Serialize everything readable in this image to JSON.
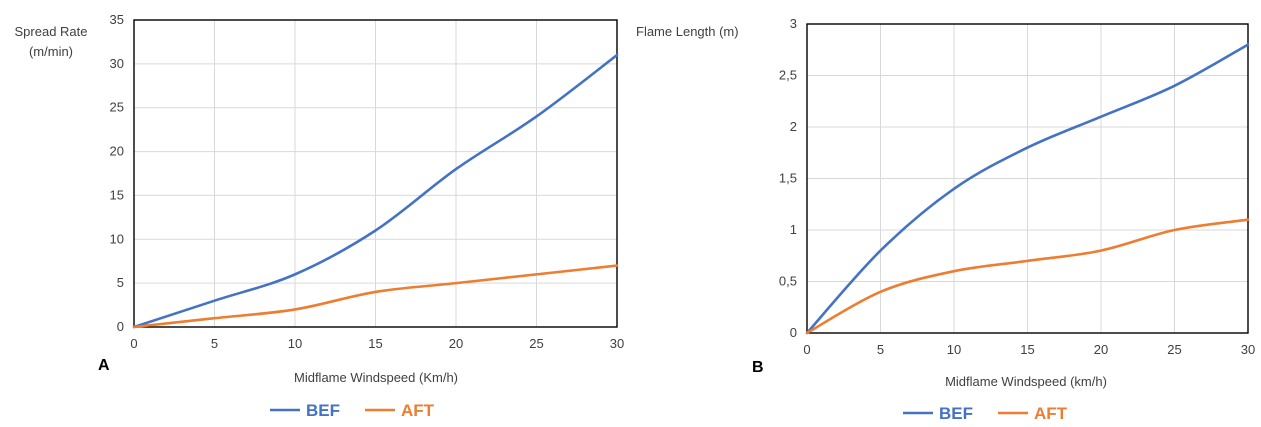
{
  "chart_data": [
    {
      "type": "line",
      "panel_label": "A",
      "ylabel_lines": [
        "Spread Rate",
        "(m/min)"
      ],
      "xlabel": "Midflame Windspeed (Km/h)",
      "x": [
        0,
        5,
        10,
        15,
        20,
        25,
        30
      ],
      "xticks": [
        "0",
        "5",
        "10",
        "15",
        "20",
        "25",
        "30"
      ],
      "yticks": [
        "0",
        "5",
        "10",
        "15",
        "20",
        "25",
        "30",
        "35"
      ],
      "xlim": [
        0,
        30
      ],
      "ylim": [
        0,
        35
      ],
      "grid": true,
      "series": [
        {
          "name": "BEF",
          "color": "#4472C4",
          "values": [
            0,
            3,
            6,
            11,
            18,
            24,
            31
          ]
        },
        {
          "name": "AFT",
          "color": "#ED7D31",
          "values": [
            0,
            1,
            2,
            4,
            5,
            6,
            7
          ]
        }
      ],
      "legend": [
        "BEF",
        "AFT"
      ]
    },
    {
      "type": "line",
      "panel_label": "B",
      "ylabel_lines": [
        "Flame Length (m)"
      ],
      "xlabel": "Midflame Windspeed (km/h)",
      "x": [
        0,
        5,
        10,
        15,
        20,
        25,
        30
      ],
      "xticks": [
        "0",
        "5",
        "10",
        "15",
        "20",
        "25",
        "30"
      ],
      "yticks": [
        "0",
        "0,5",
        "1",
        "1,5",
        "2",
        "2,5",
        "3"
      ],
      "xlim": [
        0,
        30
      ],
      "ylim": [
        0,
        3
      ],
      "grid": true,
      "series": [
        {
          "name": "BEF",
          "color": "#4472C4",
          "values": [
            0,
            0.8,
            1.4,
            1.8,
            2.1,
            2.4,
            2.8
          ]
        },
        {
          "name": "AFT",
          "color": "#ED7D31",
          "values": [
            0,
            0.4,
            0.6,
            0.7,
            0.8,
            1.0,
            1.1
          ]
        }
      ],
      "legend": [
        "BEF",
        "AFT"
      ]
    }
  ]
}
